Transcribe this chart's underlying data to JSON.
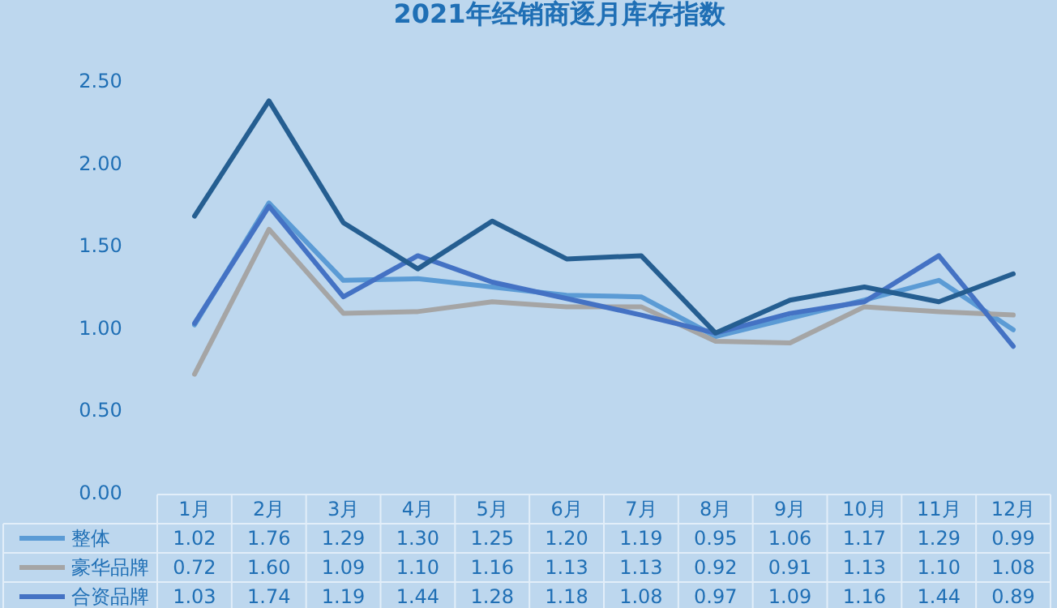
{
  "chart_data": {
    "type": "line",
    "title": "2021年经销商逐月库存指数",
    "categories": [
      "1月",
      "2月",
      "3月",
      "4月",
      "5月",
      "6月",
      "7月",
      "8月",
      "9月",
      "10月",
      "11月",
      "12月"
    ],
    "ylim": [
      0,
      2.5
    ],
    "yticks": [
      {
        "value": 0,
        "label": "0.00"
      },
      {
        "value": 0.5,
        "label": "0.50"
      },
      {
        "value": 1,
        "label": "1.00"
      },
      {
        "value": 1.5,
        "label": "1.50"
      },
      {
        "value": 2,
        "label": "2.00"
      },
      {
        "value": 2.5,
        "label": "2.50"
      }
    ],
    "legend": "bottom",
    "grid": false,
    "series": [
      {
        "name": "整体",
        "color": "#5b9bd5",
        "values": [
          1.02,
          1.76,
          1.29,
          1.3,
          1.25,
          1.2,
          1.19,
          0.95,
          1.06,
          1.17,
          1.29,
          0.99
        ],
        "value_labels": [
          "1.02",
          "1.76",
          "1.29",
          "1.30",
          "1.25",
          "1.20",
          "1.19",
          "0.95",
          "1.06",
          "1.17",
          "1.29",
          "0.99"
        ]
      },
      {
        "name": "豪华品牌",
        "color": "#a5a5a5",
        "values": [
          0.72,
          1.6,
          1.09,
          1.1,
          1.16,
          1.13,
          1.13,
          0.92,
          0.91,
          1.13,
          1.1,
          1.08
        ],
        "value_labels": [
          "0.72",
          "1.60",
          "1.09",
          "1.10",
          "1.16",
          "1.13",
          "1.13",
          "0.92",
          "0.91",
          "1.13",
          "1.10",
          "1.08"
        ]
      },
      {
        "name": "合资品牌",
        "color": "#4472c4",
        "values": [
          1.03,
          1.74,
          1.19,
          1.44,
          1.28,
          1.18,
          1.08,
          0.97,
          1.09,
          1.16,
          1.44,
          0.89
        ],
        "value_labels": [
          "1.03",
          "1.74",
          "1.19",
          "1.44",
          "1.28",
          "1.18",
          "1.08",
          "0.97",
          "1.09",
          "1.16",
          "1.44",
          "0.89"
        ]
      },
      {
        "color": "#255e91",
        "values": [
          1.68,
          2.38,
          1.64,
          1.36,
          1.65,
          1.42,
          1.44,
          0.97,
          1.17,
          1.25,
          1.16,
          1.33
        ]
      }
    ]
  }
}
